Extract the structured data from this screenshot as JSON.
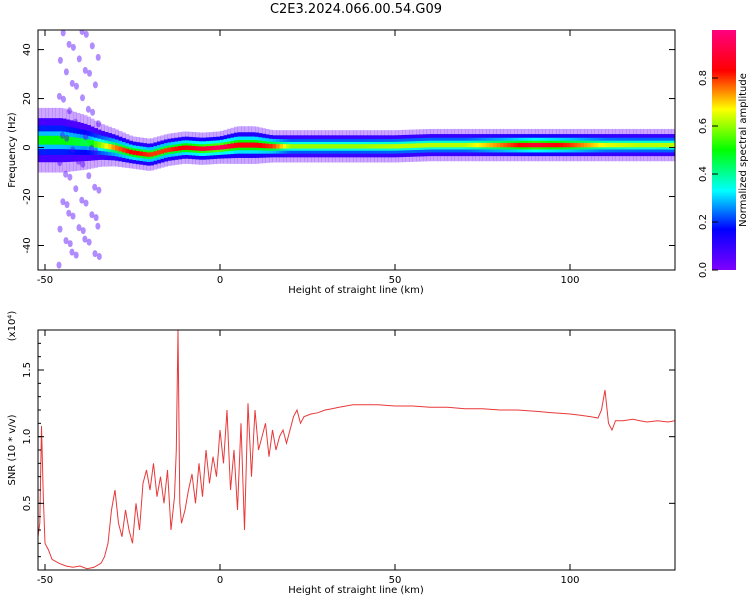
{
  "title": "C2E3.2024.066.00.54.G09",
  "chart_data": [
    {
      "type": "heatmap",
      "xlabel": "Height of straight line (km)",
      "ylabel": "Frequency (Hz)",
      "xlim": [
        -52,
        130
      ],
      "ylim": [
        -50,
        48
      ],
      "x_ticks": [
        -50,
        0,
        50,
        100
      ],
      "y_ticks": [
        -40,
        -20,
        0,
        20,
        40
      ],
      "colorbar": {
        "label": "Normalized spectral amplitude",
        "range": [
          0,
          1
        ],
        "ticks": [
          "0.0",
          "0.2",
          "0.4",
          "0.6",
          "0.8"
        ],
        "colormap": [
          "#7f00ff",
          "#0000ff",
          "#00ffff",
          "#00ff00",
          "#ffff00",
          "#ff0000",
          "#ff0080"
        ]
      },
      "ridge": {
        "x": [
          -52,
          -45,
          -38,
          -34,
          -30,
          -25,
          -20,
          -15,
          -10,
          -5,
          0,
          5,
          10,
          15,
          20,
          30,
          40,
          50,
          60,
          70,
          80,
          90,
          100,
          110,
          120,
          130
        ],
        "freq": [
          3,
          3,
          2,
          1,
          0,
          -2,
          -3,
          -1,
          0,
          -0.5,
          0,
          1,
          1,
          0.5,
          0.5,
          0.5,
          0.5,
          0.5,
          1,
          1,
          1,
          1,
          1,
          1,
          1,
          1
        ],
        "amplitude": [
          0.5,
          0.5,
          0.45,
          0.6,
          0.75,
          0.85,
          0.8,
          0.8,
          0.85,
          0.9,
          0.95,
          0.85,
          0.85,
          0.8,
          0.6,
          0.6,
          0.6,
          0.62,
          0.62,
          0.62,
          0.75,
          0.9,
          0.8,
          0.65,
          0.62,
          0.62
        ],
        "halfwidth": [
          6,
          6,
          5,
          4,
          3.5,
          3,
          3,
          3,
          3,
          3,
          3,
          3.5,
          3.5,
          3,
          3,
          3,
          3,
          3,
          3,
          3,
          3,
          3,
          3,
          3,
          3,
          3
        ]
      }
    },
    {
      "type": "line",
      "xlabel": "Height of straight line (km)",
      "ylabel": "SNR (10 * v/v)",
      "y_multiplier": "(x10⁴)",
      "xlim": [
        -52,
        130
      ],
      "ylim": [
        0,
        1.8
      ],
      "x_ticks": [
        -50,
        0,
        50,
        100
      ],
      "y_ticks": [
        0.5,
        1.0,
        1.5
      ],
      "y_tick_labels": [
        "0.5",
        "1.0",
        "1.5"
      ],
      "line_color": "#e8393a",
      "series": [
        {
          "x": [
            -52,
            -51.5,
            -51,
            -50.5,
            -50,
            -49,
            -48,
            -46,
            -44,
            -42,
            -40,
            -38,
            -36,
            -34,
            -33,
            -32,
            -31,
            -30,
            -29,
            -28,
            -27,
            -26,
            -25,
            -24,
            -23,
            -22,
            -21,
            -20,
            -19,
            -18,
            -17,
            -16,
            -15,
            -14,
            -13,
            -12.5,
            -12,
            -11.5,
            -11,
            -10,
            -9,
            -8,
            -7,
            -6,
            -5,
            -4,
            -3,
            -2,
            -1,
            0,
            1,
            2,
            3,
            4,
            5,
            6,
            7,
            8,
            9,
            10,
            11,
            12,
            13,
            14,
            15,
            16,
            17,
            18,
            19,
            20,
            21,
            22,
            23,
            24,
            26,
            28,
            30,
            32,
            34,
            36,
            38,
            40,
            42,
            45,
            50,
            55,
            60,
            65,
            70,
            75,
            80,
            85,
            90,
            95,
            100,
            103,
            106,
            108,
            109,
            110,
            111,
            112,
            113,
            115,
            118,
            120,
            122,
            125,
            128,
            130
          ],
          "y": [
            0.25,
            0.35,
            1.08,
            0.55,
            0.2,
            0.15,
            0.08,
            0.05,
            0.03,
            0.02,
            0.03,
            0.01,
            0.02,
            0.05,
            0.1,
            0.2,
            0.45,
            0.6,
            0.35,
            0.25,
            0.45,
            0.3,
            0.2,
            0.5,
            0.3,
            0.65,
            0.75,
            0.6,
            0.8,
            0.55,
            0.7,
            0.5,
            0.75,
            0.3,
            0.55,
            0.9,
            1.8,
            0.5,
            0.35,
            0.45,
            0.6,
            0.72,
            0.5,
            0.8,
            0.55,
            0.9,
            0.65,
            0.85,
            0.7,
            1.05,
            0.8,
            1.2,
            0.6,
            0.9,
            0.45,
            1.1,
            0.3,
            1.25,
            0.7,
            1.2,
            0.9,
            1.0,
            1.1,
            0.85,
            1.05,
            0.9,
            1.0,
            1.05,
            0.95,
            1.05,
            1.15,
            1.2,
            1.1,
            1.15,
            1.17,
            1.18,
            1.2,
            1.21,
            1.22,
            1.23,
            1.24,
            1.24,
            1.24,
            1.24,
            1.23,
            1.23,
            1.22,
            1.22,
            1.21,
            1.21,
            1.2,
            1.2,
            1.19,
            1.18,
            1.17,
            1.16,
            1.15,
            1.14,
            1.2,
            1.35,
            1.1,
            1.05,
            1.12,
            1.12,
            1.13,
            1.12,
            1.11,
            1.12,
            1.11,
            1.12
          ]
        }
      ]
    }
  ]
}
